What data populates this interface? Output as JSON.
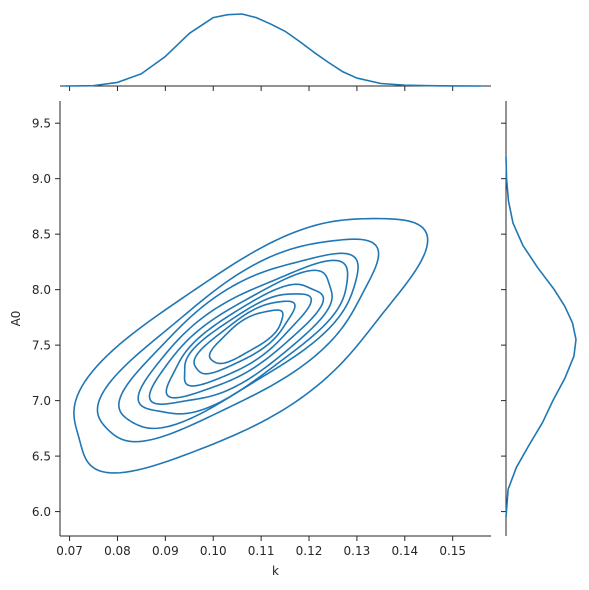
{
  "colors": {
    "series": "#1f77b4",
    "axis": "#262626",
    "background": "#ffffff"
  },
  "chart_data": {
    "type": "kde-joint",
    "title": "",
    "xlabel": "k",
    "ylabel": "A0",
    "xlim": [
      0.068,
      0.158
    ],
    "ylim": [
      5.78,
      9.7
    ],
    "x_ticks": [
      0.07,
      0.08,
      0.09,
      0.1,
      0.11,
      0.12,
      0.13,
      0.14,
      0.15
    ],
    "x_tick_labels": [
      "0.07",
      "0.08",
      "0.09",
      "0.10",
      "0.11",
      "0.12",
      "0.13",
      "0.14",
      "0.15"
    ],
    "y_ticks": [
      6.0,
      6.5,
      7.0,
      7.5,
      8.0,
      8.5,
      9.0,
      9.5
    ],
    "y_tick_labels": [
      "6.0",
      "6.5",
      "7.0",
      "7.5",
      "8.0",
      "8.5",
      "9.0",
      "9.5"
    ],
    "grid": false,
    "contour": {
      "center": [
        0.1065,
        7.52
      ],
      "major_dir": [
        0.0224,
        0.7006
      ],
      "minor_dir": [
        0.0174,
        -0.5571
      ],
      "levels": [
        {
          "a": 1.52,
          "b": 0.76,
          "dx": 0.0,
          "dy": 0.0
        },
        {
          "a": 1.22,
          "b": 0.56,
          "dx": -0.001,
          "dy": 0.03
        },
        {
          "a": 1.05,
          "b": 0.47,
          "dx": -0.001,
          "dy": 0.03
        },
        {
          "a": 0.92,
          "b": 0.41,
          "dx": 0.0,
          "dy": 0.03
        },
        {
          "a": 0.8,
          "b": 0.35,
          "dx": 0.0,
          "dy": 0.03
        },
        {
          "a": 0.68,
          "b": 0.29,
          "dx": 0.0,
          "dy": 0.03
        },
        {
          "a": 0.56,
          "b": 0.24,
          "dx": 0.0,
          "dy": 0.04
        },
        {
          "a": 0.44,
          "b": 0.19,
          "dx": 0.0,
          "dy": 0.05
        },
        {
          "a": 0.32,
          "b": 0.15,
          "dx": 0.0005,
          "dy": 0.06
        }
      ]
    },
    "marginal_x": {
      "x": [
        0.069,
        0.075,
        0.08,
        0.085,
        0.09,
        0.095,
        0.1,
        0.103,
        0.106,
        0.109,
        0.112,
        0.115,
        0.118,
        0.121,
        0.124,
        0.127,
        0.13,
        0.135,
        0.14,
        0.145,
        0.15,
        0.156
      ],
      "density": [
        0.0,
        0.005,
        0.05,
        0.17,
        0.41,
        0.73,
        0.95,
        0.99,
        1.0,
        0.95,
        0.86,
        0.76,
        0.62,
        0.47,
        0.33,
        0.2,
        0.11,
        0.035,
        0.012,
        0.004,
        0.001,
        0.0
      ]
    },
    "marginal_y": {
      "y": [
        5.95,
        6.2,
        6.4,
        6.6,
        6.8,
        7.0,
        7.2,
        7.4,
        7.55,
        7.7,
        7.85,
        8.0,
        8.2,
        8.4,
        8.6,
        8.8,
        9.0,
        9.2
      ],
      "density": [
        0.0,
        0.03,
        0.15,
        0.33,
        0.52,
        0.67,
        0.84,
        0.97,
        1.0,
        0.95,
        0.84,
        0.69,
        0.45,
        0.24,
        0.1,
        0.035,
        0.008,
        0.0
      ]
    }
  }
}
